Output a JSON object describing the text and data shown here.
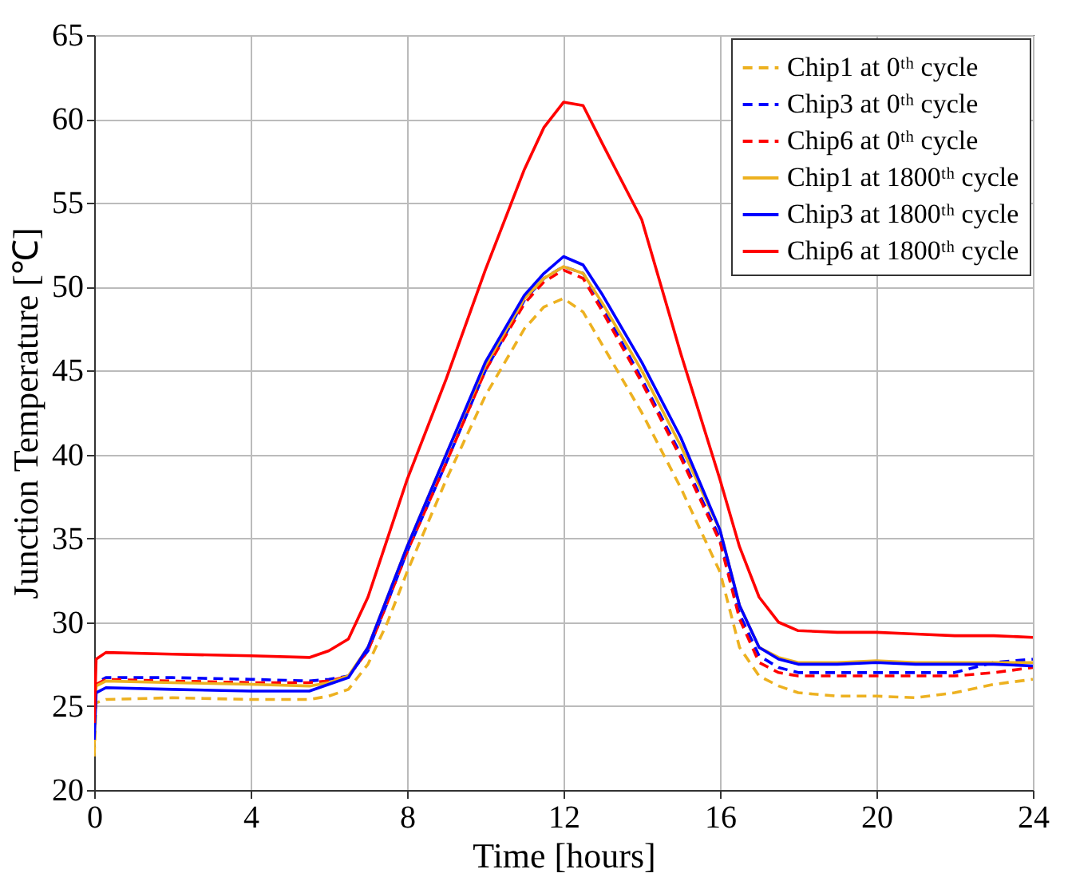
{
  "chart_data": {
    "type": "line",
    "xlabel": "Time [hours]",
    "ylabel": "Junction Temperature [℃]",
    "x": [
      0,
      0.05,
      0.3,
      2,
      4,
      5.5,
      6,
      6.5,
      7,
      7.5,
      8,
      9,
      10,
      11,
      11.5,
      12,
      12.5,
      13,
      14,
      15,
      16,
      16.5,
      17,
      17.5,
      18,
      19,
      20,
      21,
      22,
      23,
      24
    ],
    "series": [
      {
        "name": "Chip1 at 0ᵗʰ cycle",
        "color": "#edb120",
        "line_style": "dashed",
        "values": [
          22,
          25.2,
          25.4,
          25.5,
          25.4,
          25.4,
          25.6,
          26,
          27.5,
          30,
          33,
          38.5,
          43.5,
          47.5,
          48.8,
          49.3,
          48.5,
          46.5,
          42.5,
          38,
          33,
          28.5,
          26.8,
          26.2,
          25.8,
          25.6,
          25.6,
          25.5,
          25.8,
          26.3,
          26.6
        ]
      },
      {
        "name": "Chip3 at 0ᵗʰ cycle",
        "color": "#0000ff",
        "line_style": "dashed",
        "values": [
          23,
          26.4,
          26.7,
          26.7,
          26.6,
          26.5,
          26.6,
          26.8,
          28.3,
          31.2,
          34.2,
          39.5,
          45,
          49.2,
          50.5,
          51.2,
          50.8,
          48.8,
          44.5,
          40,
          35,
          30.5,
          28,
          27.3,
          27,
          27,
          27,
          27,
          27,
          27.6,
          27.8
        ]
      },
      {
        "name": "Chip6 at 0ᵗʰ cycle",
        "color": "#ff0000",
        "line_style": "dashed",
        "values": [
          23.5,
          26.3,
          26.6,
          26.5,
          26.4,
          26.4,
          26.5,
          26.8,
          28.3,
          31.2,
          34.2,
          39.5,
          45,
          49,
          50.3,
          51,
          50.5,
          48.5,
          44.3,
          39.8,
          34.8,
          30.2,
          27.6,
          27,
          26.8,
          26.8,
          26.8,
          26.8,
          26.8,
          27,
          27.3
        ]
      },
      {
        "name": "Chip1 at 1800ᵗʰ cycle",
        "color": "#edb120",
        "line_style": "solid",
        "values": [
          22.5,
          26.2,
          26.5,
          26.4,
          26.3,
          26.2,
          26.4,
          26.8,
          28.5,
          31.5,
          34.5,
          40,
          45.3,
          49.3,
          50.5,
          51.2,
          50.8,
          49,
          45,
          40.5,
          35.5,
          31,
          28.5,
          27.9,
          27.6,
          27.6,
          27.7,
          27.6,
          27.6,
          27.6,
          27.6
        ]
      },
      {
        "name": "Chip3 at 1800ᵗʰ cycle",
        "color": "#0000ff",
        "line_style": "solid",
        "values": [
          23,
          25.8,
          26.1,
          26,
          25.9,
          25.9,
          26.3,
          26.7,
          28.5,
          31.5,
          34.5,
          40,
          45.5,
          49.5,
          50.8,
          51.8,
          51.3,
          49.5,
          45.5,
          41,
          35.5,
          31,
          28.5,
          27.8,
          27.5,
          27.5,
          27.6,
          27.5,
          27.5,
          27.5,
          27.4
        ]
      },
      {
        "name": "Chip6 at 1800ᵗʰ cycle",
        "color": "#ff0000",
        "line_style": "solid",
        "values": [
          24,
          27.8,
          28.2,
          28.1,
          28,
          27.9,
          28.3,
          29,
          31.5,
          35,
          38.5,
          44.5,
          51,
          57,
          59.5,
          61,
          60.8,
          58.5,
          54,
          46,
          38.5,
          34.5,
          31.5,
          30,
          29.5,
          29.4,
          29.4,
          29.3,
          29.2,
          29.2,
          29.1
        ]
      }
    ],
    "xlim": [
      0,
      24
    ],
    "xticks": [
      0,
      4,
      8,
      12,
      16,
      20,
      24
    ],
    "ylim": [
      20,
      65
    ],
    "yticks": [
      20,
      25,
      30,
      35,
      40,
      45,
      50,
      55,
      60,
      65
    ],
    "grid": true,
    "legend": "top right"
  }
}
